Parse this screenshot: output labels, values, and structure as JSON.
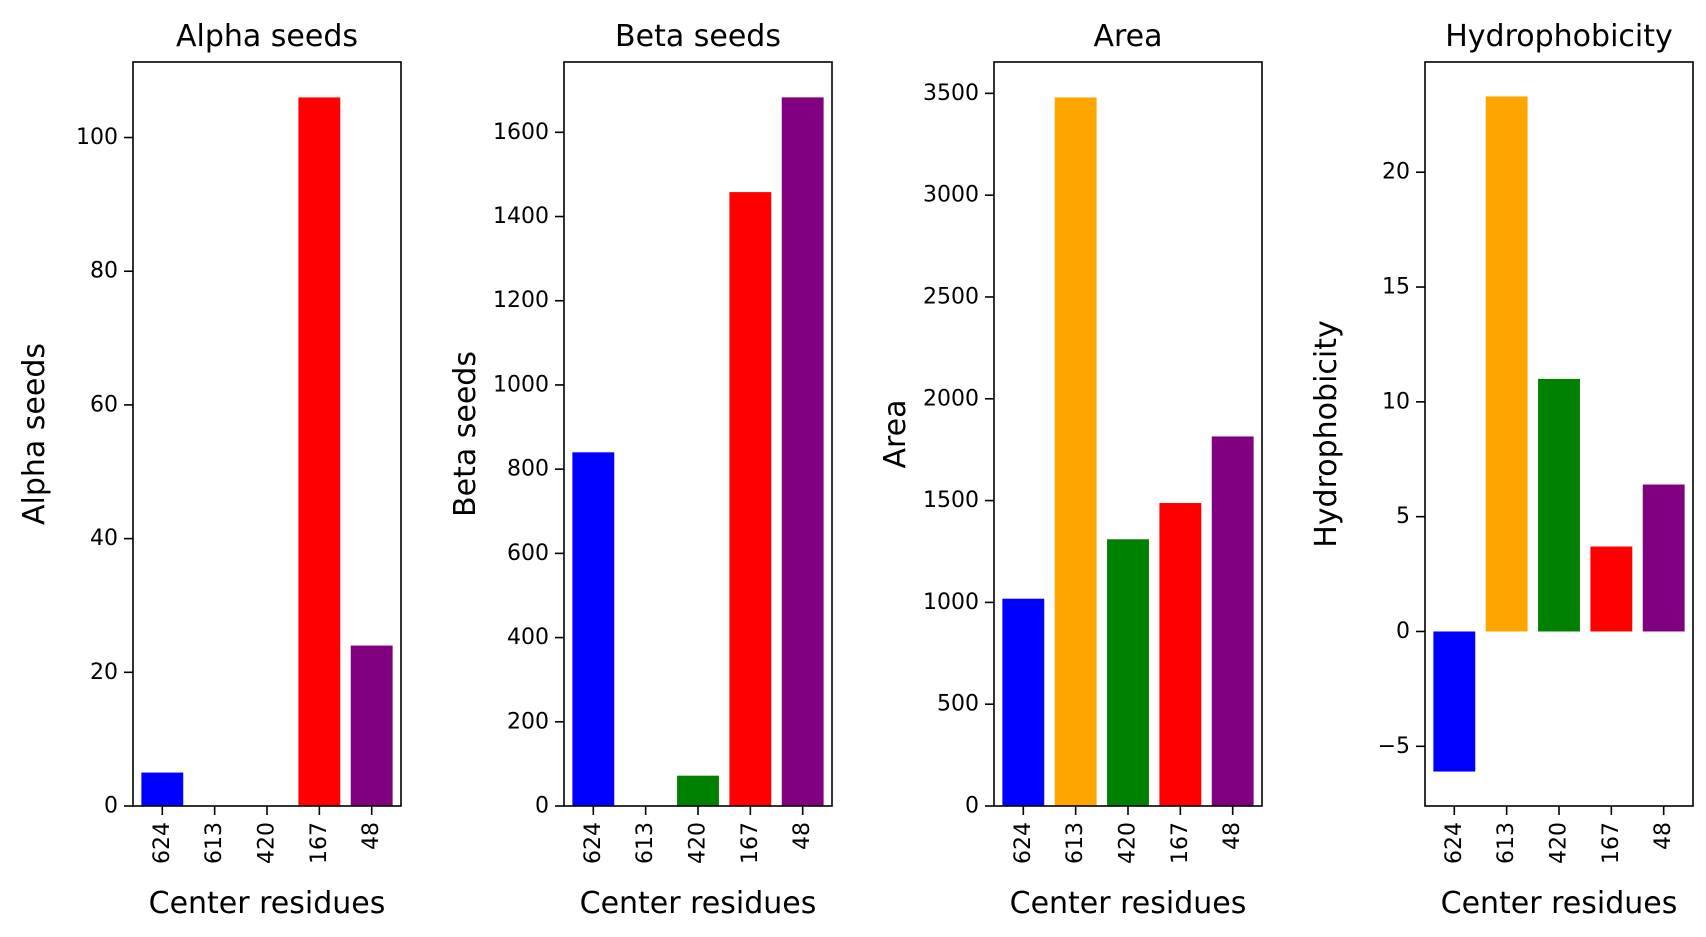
{
  "chart_data": [
    {
      "type": "bar",
      "title": "Alpha seeds",
      "xlabel": "Center residues",
      "ylabel": "Alpha seeds",
      "categories": [
        "624",
        "613",
        "420",
        "167",
        "48"
      ],
      "values": [
        5,
        0,
        0,
        106,
        24
      ],
      "colors": [
        "#0000ff",
        "#ffa500",
        "#008000",
        "#ff0000",
        "#800080"
      ],
      "ylim": [
        0,
        111.3
      ],
      "yticks": [
        0,
        20,
        40,
        60,
        80,
        100
      ],
      "ytick_labels": [
        "0",
        "20",
        "40",
        "60",
        "80",
        "100"
      ],
      "grid": false,
      "legend": "none"
    },
    {
      "type": "bar",
      "title": "Beta seeds",
      "xlabel": "Center residues",
      "ylabel": "Beta seeds",
      "categories": [
        "624",
        "613",
        "420",
        "167",
        "48"
      ],
      "values": [
        840,
        0,
        72,
        1458,
        1683
      ],
      "colors": [
        "#0000ff",
        "#ffa500",
        "#008000",
        "#ff0000",
        "#800080"
      ],
      "ylim": [
        0,
        1767
      ],
      "yticks": [
        0,
        200,
        400,
        600,
        800,
        1000,
        1200,
        1400,
        1600
      ],
      "ytick_labels": [
        "0",
        "200",
        "400",
        "600",
        "800",
        "1000",
        "1200",
        "1400",
        "1600"
      ],
      "grid": false,
      "legend": "none"
    },
    {
      "type": "bar",
      "title": "Area",
      "xlabel": "Center residues",
      "ylabel": "Area",
      "categories": [
        "624",
        "613",
        "420",
        "167",
        "48"
      ],
      "values": [
        1018,
        3480,
        1310,
        1488,
        1815
      ],
      "colors": [
        "#0000ff",
        "#ffa500",
        "#008000",
        "#ff0000",
        "#800080"
      ],
      "ylim": [
        0,
        3654
      ],
      "yticks": [
        0,
        500,
        1000,
        1500,
        2000,
        2500,
        3000,
        3500
      ],
      "ytick_labels": [
        "0",
        "500",
        "1000",
        "1500",
        "2000",
        "2500",
        "3000",
        "3500"
      ],
      "grid": false,
      "legend": "none"
    },
    {
      "type": "bar",
      "title": "Hydrophobicity",
      "xlabel": "Center residues",
      "ylabel": "Hydrophobicity",
      "categories": [
        "624",
        "613",
        "420",
        "167",
        "48"
      ],
      "values": [
        -6.1,
        23.3,
        11.0,
        3.7,
        6.4
      ],
      "colors": [
        "#0000ff",
        "#ffa500",
        "#008000",
        "#ff0000",
        "#800080"
      ],
      "ylim": [
        -7.6,
        24.8
      ],
      "yticks": [
        -5,
        0,
        5,
        10,
        15,
        20
      ],
      "ytick_labels": [
        "−5",
        "0",
        "5",
        "10",
        "15",
        "20"
      ],
      "grid": false,
      "legend": "none"
    }
  ]
}
